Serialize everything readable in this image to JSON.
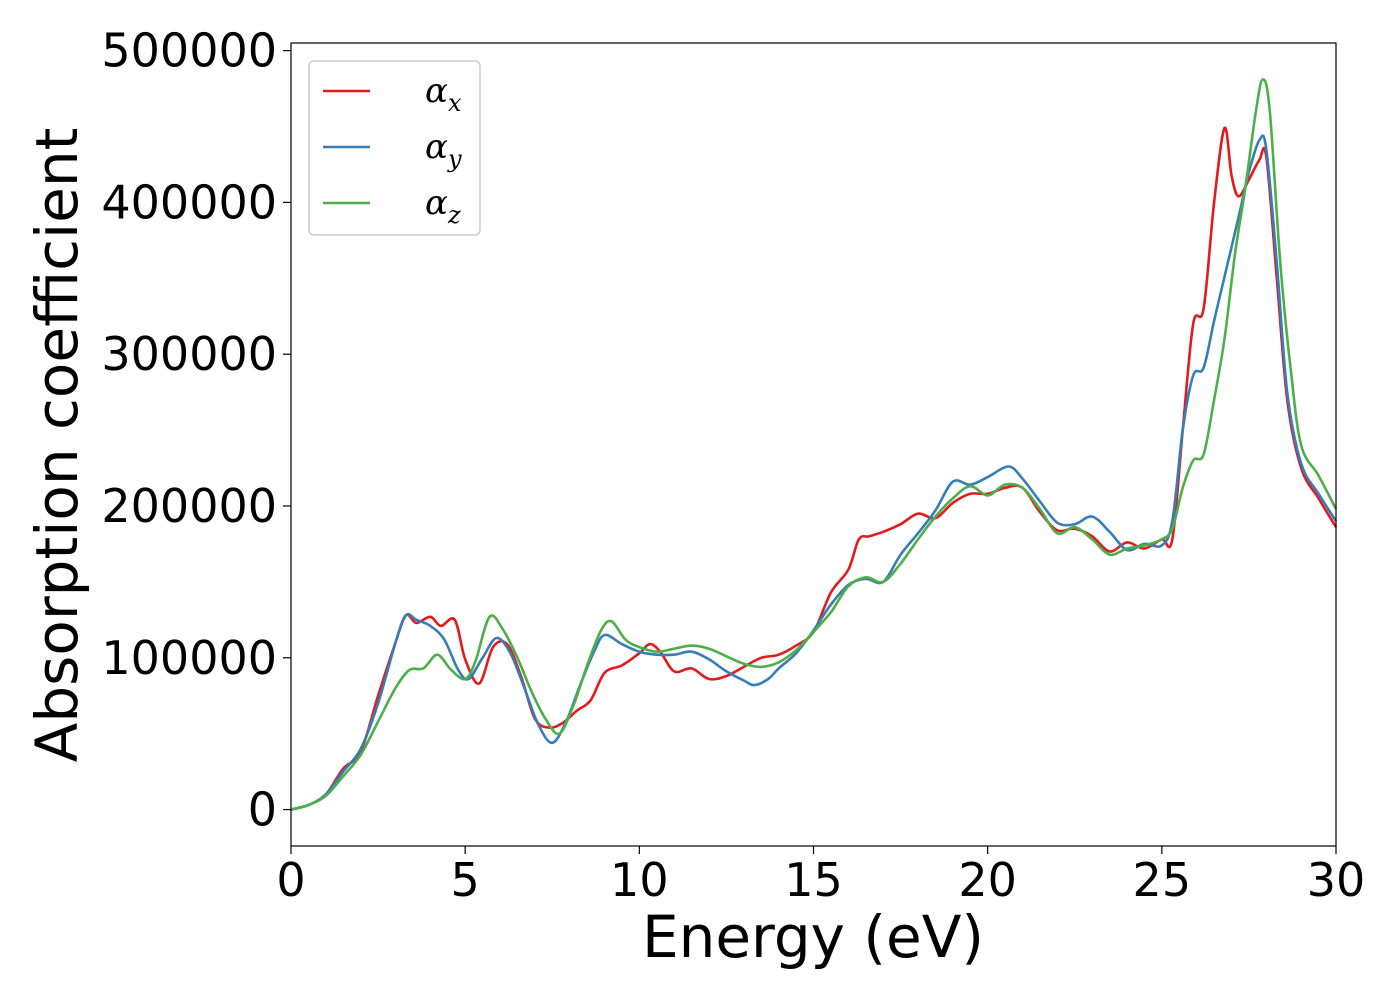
{
  "chart_data": {
    "type": "line",
    "title": "",
    "xlabel": "Energy (eV)",
    "ylabel": "Absorption coefficient",
    "xlim": [
      0,
      30
    ],
    "ylim": [
      -24000,
      505000
    ],
    "xticks": [
      0,
      5,
      10,
      15,
      20,
      25,
      30
    ],
    "yticks": [
      0,
      100000,
      200000,
      300000,
      400000,
      500000
    ],
    "grid": false,
    "legend_position": "top-left",
    "series": [
      {
        "name": "α",
        "subscript": "x",
        "color": "#e41a1c",
        "x": [
          0,
          0.5,
          1.0,
          1.5,
          2.0,
          2.5,
          3.0,
          3.3,
          3.6,
          4.0,
          4.3,
          4.7,
          5.0,
          5.4,
          5.8,
          6.2,
          6.6,
          7.0,
          7.4,
          7.8,
          8.2,
          8.6,
          9.0,
          9.5,
          10.0,
          10.3,
          10.6,
          11.0,
          11.5,
          12.0,
          12.5,
          13.0,
          13.5,
          14.0,
          14.5,
          15.0,
          15.5,
          16.0,
          16.3,
          16.6,
          17.0,
          17.5,
          18.0,
          18.5,
          19.0,
          19.5,
          20.0,
          20.5,
          21.0,
          21.5,
          22.0,
          22.5,
          23.0,
          23.5,
          24.0,
          24.5,
          25.0,
          25.3,
          25.6,
          25.9,
          26.2,
          26.5,
          26.8,
          27.0,
          27.2,
          27.5,
          27.8,
          28.0,
          28.3,
          28.6,
          29.0,
          29.5,
          30.0
        ],
        "values": [
          0,
          3000,
          10000,
          27000,
          38000,
          75000,
          110000,
          128000,
          123000,
          127000,
          121000,
          125000,
          99000,
          83000,
          107000,
          109000,
          88000,
          60000,
          54000,
          57000,
          65000,
          72000,
          90000,
          95000,
          103000,
          109000,
          104000,
          91000,
          93000,
          86000,
          88000,
          94000,
          100000,
          102000,
          108000,
          117000,
          143000,
          158000,
          178000,
          180000,
          183000,
          188000,
          195000,
          192000,
          202000,
          208000,
          208000,
          212000,
          212000,
          196000,
          184000,
          185000,
          180000,
          170000,
          176000,
          172000,
          178000,
          178000,
          250000,
          320000,
          330000,
          400000,
          449000,
          418000,
          404000,
          415000,
          428000,
          430000,
          350000,
          270000,
          225000,
          205000,
          186000
        ]
      },
      {
        "name": "α",
        "subscript": "y",
        "color": "#377eb8",
        "x": [
          0,
          0.5,
          1.0,
          1.5,
          2.0,
          2.5,
          3.0,
          3.3,
          3.6,
          4.0,
          4.4,
          4.8,
          5.1,
          5.5,
          5.9,
          6.3,
          6.7,
          7.1,
          7.5,
          7.9,
          8.3,
          8.7,
          9.0,
          9.5,
          10.0,
          10.5,
          11.0,
          11.5,
          12.0,
          12.5,
          13.0,
          13.3,
          13.7,
          14.0,
          14.5,
          15.0,
          15.5,
          16.0,
          16.5,
          17.0,
          17.5,
          18.0,
          18.5,
          19.0,
          19.5,
          20.0,
          20.6,
          21.0,
          21.5,
          22.0,
          22.5,
          23.0,
          23.5,
          24.0,
          24.5,
          25.0,
          25.3,
          25.6,
          25.9,
          26.2,
          26.5,
          26.8,
          27.2,
          27.5,
          27.8,
          28.0,
          28.3,
          28.6,
          29.0,
          29.5,
          30.0
        ],
        "values": [
          0,
          3000,
          10000,
          25000,
          40000,
          70000,
          110000,
          128000,
          125000,
          121000,
          112000,
          92000,
          86000,
          100000,
          113000,
          103000,
          80000,
          56000,
          44000,
          58000,
          82000,
          104000,
          115000,
          109000,
          104000,
          102000,
          102000,
          104000,
          99000,
          91000,
          85000,
          82000,
          86000,
          93000,
          103000,
          118000,
          135000,
          148000,
          152000,
          150000,
          168000,
          182000,
          197000,
          216000,
          214000,
          219000,
          226000,
          218000,
          203000,
          189000,
          188000,
          193000,
          183000,
          171000,
          175000,
          174000,
          190000,
          250000,
          286000,
          291000,
          322000,
          351000,
          390000,
          420000,
          441000,
          435000,
          360000,
          275000,
          228000,
          208000,
          190000
        ]
      },
      {
        "name": "α",
        "subscript": "z",
        "color": "#4daf4a",
        "x": [
          0,
          0.5,
          1.0,
          1.5,
          2.0,
          2.5,
          3.0,
          3.4,
          3.8,
          4.2,
          4.6,
          5.0,
          5.3,
          5.7,
          6.1,
          6.5,
          6.9,
          7.3,
          7.7,
          8.1,
          8.5,
          8.9,
          9.2,
          9.6,
          10.0,
          10.5,
          11.0,
          11.5,
          12.0,
          12.5,
          13.0,
          13.5,
          14.0,
          14.5,
          15.0,
          15.5,
          16.0,
          16.5,
          17.0,
          17.5,
          18.0,
          18.5,
          19.0,
          19.5,
          20.0,
          20.5,
          21.0,
          21.5,
          22.0,
          22.5,
          23.0,
          23.5,
          24.0,
          24.5,
          25.0,
          25.3,
          25.6,
          25.9,
          26.2,
          26.5,
          26.8,
          27.1,
          27.4,
          27.7,
          27.9,
          28.1,
          28.4,
          28.7,
          29.0,
          29.5,
          30.0
        ],
        "values": [
          0,
          3000,
          9000,
          22000,
          36000,
          58000,
          80000,
          92000,
          93000,
          102000,
          92000,
          86000,
          98000,
          127000,
          118000,
          100000,
          78000,
          60000,
          50000,
          68000,
          95000,
          118000,
          124000,
          112000,
          107000,
          104000,
          106000,
          108000,
          106000,
          101000,
          96000,
          94000,
          97000,
          105000,
          117000,
          130000,
          147000,
          153000,
          150000,
          162000,
          178000,
          193000,
          205000,
          213000,
          207000,
          214000,
          212000,
          198000,
          182000,
          186000,
          178000,
          168000,
          172000,
          174000,
          178000,
          185000,
          212000,
          230000,
          234000,
          270000,
          310000,
          366000,
          410000,
          460000,
          481000,
          460000,
          360000,
          290000,
          240000,
          220000,
          198000
        ]
      }
    ]
  }
}
